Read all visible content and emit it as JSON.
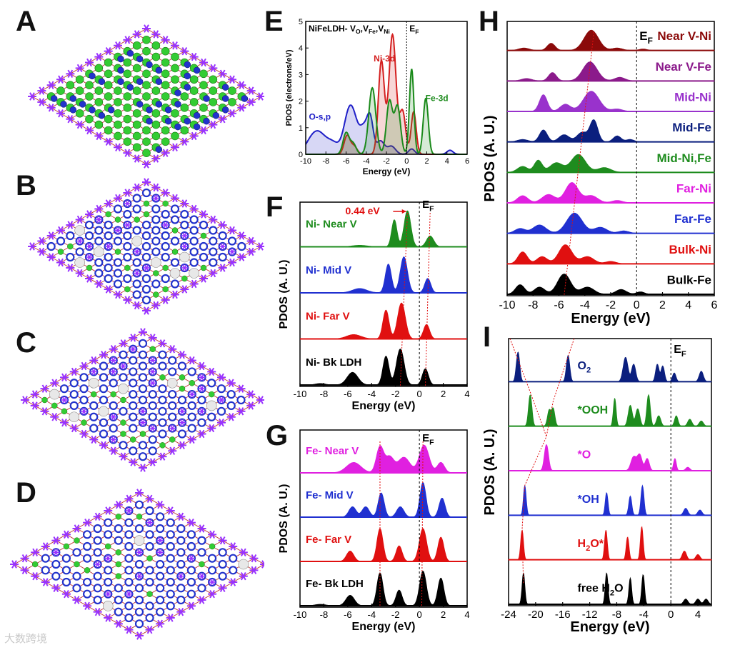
{
  "panel_labels": {
    "A": "A",
    "B": "B",
    "C": "C",
    "D": "D",
    "E": "E",
    "F": "F",
    "G": "G",
    "H": "H",
    "I": "I"
  },
  "watermark": "大数跨境",
  "colors": {
    "ni": "#1b8a1b",
    "fe": "#d42020",
    "o": "#2020c8",
    "black": "#000000",
    "navy": "#0b1f7e",
    "maroon": "#8b0a0a",
    "purple": "#8b1a8b",
    "violet": "#9932cc",
    "green": "#1e8c1e",
    "magenta": "#e020e0",
    "blue": "#2030d0",
    "red": "#e01010",
    "atomGreen": "#33cc33",
    "atomBlue": "#2233cc",
    "atomPurple": "#9933ff",
    "atomGray": "#e8e8e8"
  },
  "structures": [
    {
      "id": "A",
      "type": "NiFe LDH pristine"
    },
    {
      "id": "B",
      "type": "with vacancies"
    },
    {
      "id": "C",
      "type": "with vacancies"
    },
    {
      "id": "D",
      "type": "with vacancies"
    }
  ],
  "chart_data": [
    {
      "id": "E",
      "type": "area",
      "title": "NiFeLDH- VO,VFe,VNi",
      "title_parts": {
        "base": "NiFeLDH- V",
        "s1": "O",
        "mid1": ",V",
        "s2": "Fe",
        "mid2": ",V",
        "s3": "Ni"
      },
      "ef_label": "E",
      "ef_sub": "F",
      "xlabel": "Energy (eV)",
      "ylabel": "PDOS (electrons/eV)",
      "xlim": [
        -10,
        6
      ],
      "ylim": [
        0,
        5
      ],
      "xticks": [
        -10,
        -8,
        -6,
        -4,
        -2,
        0,
        2,
        4,
        6
      ],
      "yticks": [
        0,
        1,
        2,
        3,
        4,
        5
      ],
      "series": [
        {
          "name": "O-s,p",
          "color": "#2020c8",
          "peaks": [
            [
              -9.6,
              0.3,
              0.6
            ],
            [
              -8.7,
              0.75,
              0.7
            ],
            [
              -7.3,
              0.4,
              0.6
            ],
            [
              -5.8,
              1.2,
              0.5
            ],
            [
              -5.2,
              1.0,
              0.5
            ],
            [
              -4.2,
              0.9,
              0.4
            ],
            [
              -3.6,
              1.2,
              0.3
            ],
            [
              -2.6,
              0.5,
              0.4
            ],
            [
              -1.5,
              0.3,
              0.4
            ],
            [
              0.5,
              0.2,
              0.3
            ],
            [
              4.3,
              0.15,
              0.3
            ]
          ]
        },
        {
          "name": "Ni-3d",
          "color": "#d42020",
          "peaks": [
            [
              -5.9,
              0.7,
              0.3
            ],
            [
              -5.2,
              0.3,
              0.3
            ],
            [
              -2.5,
              3.5,
              0.3
            ],
            [
              -1.4,
              4.5,
              0.35
            ],
            [
              -0.4,
              1.6,
              0.3
            ],
            [
              0.7,
              1.6,
              0.25
            ]
          ]
        },
        {
          "name": "Fe-3d",
          "color": "#1b8a1b",
          "peaks": [
            [
              -6.0,
              0.8,
              0.3
            ],
            [
              -5.3,
              0.4,
              0.3
            ],
            [
              -3.4,
              2.5,
              0.35
            ],
            [
              -1.7,
              2.0,
              0.3
            ],
            [
              -0.9,
              1.8,
              0.3
            ],
            [
              0.5,
              3.2,
              0.22
            ],
            [
              1.9,
              2.1,
              0.25
            ]
          ]
        }
      ]
    },
    {
      "id": "F",
      "type": "area",
      "annotation": "0.44 eV",
      "ef_label": "E",
      "ef_sub": "F",
      "xlabel": "Energy (eV)",
      "ylabel": "PDOS (A. U.)",
      "xlim": [
        -10,
        4
      ],
      "xticks": [
        -10,
        -8,
        -6,
        -4,
        -2,
        0,
        2,
        4
      ],
      "series": [
        {
          "name": "Ni- Near V",
          "color": "#1e8c1e",
          "peaks": [
            [
              -2.1,
              0.75,
              0.22
            ],
            [
              -1.0,
              1.0,
              0.28
            ],
            [
              0.9,
              0.3,
              0.3
            ],
            [
              -5.0,
              0.04,
              0.6
            ]
          ]
        },
        {
          "name": "Ni- Mid V",
          "color": "#2030d0",
          "peaks": [
            [
              -2.6,
              0.8,
              0.25
            ],
            [
              -1.3,
              1.0,
              0.3
            ],
            [
              0.7,
              0.4,
              0.25
            ],
            [
              -5.0,
              0.12,
              0.6
            ]
          ]
        },
        {
          "name": "Ni- Far V",
          "color": "#e01010",
          "peaks": [
            [
              -2.8,
              0.8,
              0.25
            ],
            [
              -1.5,
              1.0,
              0.32
            ],
            [
              0.6,
              0.4,
              0.25
            ],
            [
              -5.5,
              0.12,
              0.6
            ]
          ]
        },
        {
          "name": "Ni- Bk LDH",
          "color": "#000000",
          "peaks": [
            [
              -2.8,
              0.8,
              0.25
            ],
            [
              -1.6,
              1.0,
              0.32
            ],
            [
              0.5,
              0.45,
              0.25
            ],
            [
              -5.6,
              0.35,
              0.45
            ],
            [
              -8.3,
              0.04,
              0.4
            ]
          ]
        }
      ]
    },
    {
      "id": "G",
      "type": "area",
      "ef_label": "E",
      "ef_sub": "F",
      "xlabel": "Energy (eV)",
      "ylabel": "PDOS (A. U.)",
      "xlim": [
        -10,
        4
      ],
      "xticks": [
        -10,
        -8,
        -6,
        -4,
        -2,
        0,
        2,
        4
      ],
      "series": [
        {
          "name": "Fe- Near V",
          "color": "#e020e0",
          "peaks": [
            [
              -5.5,
              0.3,
              0.6
            ],
            [
              -3.3,
              0.75,
              0.3
            ],
            [
              -2.5,
              0.45,
              0.35
            ],
            [
              -1.3,
              0.45,
              0.5
            ],
            [
              0.4,
              0.8,
              0.4
            ],
            [
              1.8,
              0.3,
              0.3
            ]
          ]
        },
        {
          "name": "Fe- Mid V",
          "color": "#2030d0",
          "peaks": [
            [
              -5.6,
              0.3,
              0.3
            ],
            [
              -4.5,
              0.3,
              0.3
            ],
            [
              -3.2,
              0.7,
              0.25
            ],
            [
              -1.6,
              0.3,
              0.3
            ],
            [
              0.3,
              1.0,
              0.25
            ],
            [
              1.9,
              0.55,
              0.25
            ]
          ]
        },
        {
          "name": "Fe- Far V",
          "color": "#e01010",
          "peaks": [
            [
              -5.8,
              0.3,
              0.3
            ],
            [
              -3.3,
              0.95,
              0.25
            ],
            [
              -1.7,
              0.45,
              0.25
            ],
            [
              0.3,
              0.95,
              0.3
            ],
            [
              1.8,
              0.7,
              0.25
            ]
          ]
        },
        {
          "name": "Fe- Bk LDH",
          "color": "#000000",
          "peaks": [
            [
              -5.8,
              0.3,
              0.35
            ],
            [
              -3.3,
              0.95,
              0.25
            ],
            [
              -1.7,
              0.45,
              0.25
            ],
            [
              0.3,
              1.0,
              0.28
            ],
            [
              1.8,
              0.8,
              0.25
            ],
            [
              -8.3,
              0.04,
              0.4
            ]
          ]
        }
      ]
    },
    {
      "id": "H",
      "type": "area",
      "ef_label": "E",
      "ef_sub": "F",
      "xlabel": "Energy (eV)",
      "ylabel": "PDOS (A. U.)",
      "xlim": [
        -10,
        6
      ],
      "xticks": [
        -10,
        -8,
        -6,
        -4,
        -2,
        0,
        2,
        4,
        6
      ],
      "series": [
        {
          "name": "Near V-Ni",
          "color": "#8b0a0a",
          "peaks": [
            [
              -8.7,
              0.1,
              0.4
            ],
            [
              -6.6,
              0.3,
              0.3
            ],
            [
              -3.5,
              0.85,
              0.55
            ],
            [
              -1.5,
              0.1,
              0.4
            ],
            [
              0.5,
              0.06,
              0.3
            ]
          ]
        },
        {
          "name": "Near V-Fe",
          "color": "#8b1a8b",
          "peaks": [
            [
              -8.5,
              0.1,
              0.4
            ],
            [
              -6.5,
              0.35,
              0.3
            ],
            [
              -3.6,
              0.8,
              0.55
            ],
            [
              -1.3,
              0.15,
              0.4
            ]
          ]
        },
        {
          "name": "Mid-Ni",
          "color": "#9932cc",
          "peaks": [
            [
              -7.2,
              0.7,
              0.3
            ],
            [
              -5.5,
              0.3,
              0.4
            ],
            [
              -3.5,
              0.85,
              0.6
            ],
            [
              -1.5,
              0.1,
              0.4
            ]
          ]
        },
        {
          "name": "Mid-Fe",
          "color": "#0b1f7e",
          "peaks": [
            [
              -8.8,
              0.1,
              0.4
            ],
            [
              -7.2,
              0.5,
              0.3
            ],
            [
              -5.6,
              0.3,
              0.4
            ],
            [
              -4.2,
              0.4,
              0.4
            ],
            [
              -3.3,
              0.9,
              0.3
            ],
            [
              -1.5,
              0.25,
              0.3
            ],
            [
              -0.5,
              0.1,
              0.3
            ]
          ]
        },
        {
          "name": "Mid-Ni,Fe",
          "color": "#1e8c1e",
          "peaks": [
            [
              -8.8,
              0.25,
              0.4
            ],
            [
              -7.6,
              0.5,
              0.3
            ],
            [
              -6.2,
              0.4,
              0.5
            ],
            [
              -4.5,
              0.75,
              0.55
            ],
            [
              -2.5,
              0.2,
              0.5
            ]
          ]
        },
        {
          "name": "Far-Ni",
          "color": "#e020e0",
          "peaks": [
            [
              -8.8,
              0.3,
              0.4
            ],
            [
              -6.8,
              0.35,
              0.5
            ],
            [
              -5.0,
              0.85,
              0.5
            ],
            [
              -3.5,
              0.3,
              0.5
            ],
            [
              -1.5,
              0.1,
              0.4
            ]
          ]
        },
        {
          "name": "Far-Fe",
          "color": "#2030d0",
          "peaks": [
            [
              -9.0,
              0.2,
              0.4
            ],
            [
              -7.5,
              0.35,
              0.5
            ],
            [
              -4.8,
              0.85,
              0.6
            ],
            [
              -2.8,
              0.25,
              0.5
            ],
            [
              -1.0,
              0.1,
              0.4
            ]
          ]
        },
        {
          "name": "Bulk-Ni",
          "color": "#e01010",
          "peaks": [
            [
              -8.8,
              0.5,
              0.35
            ],
            [
              -7.3,
              0.3,
              0.4
            ],
            [
              -5.5,
              0.8,
              0.5
            ],
            [
              -3.8,
              0.3,
              0.5
            ],
            [
              -2.0,
              0.1,
              0.4
            ]
          ]
        },
        {
          "name": "Bulk-Fe",
          "color": "#000000",
          "peaks": [
            [
              -9.0,
              0.4,
              0.35
            ],
            [
              -7.5,
              0.3,
              0.4
            ],
            [
              -5.6,
              0.85,
              0.5
            ],
            [
              -3.8,
              0.3,
              0.5
            ],
            [
              -1.2,
              0.2,
              0.4
            ],
            [
              0.3,
              0.1,
              0.3
            ]
          ]
        }
      ]
    },
    {
      "id": "I",
      "type": "area",
      "ef_label": "E",
      "ef_sub": "F",
      "xlabel": "Energy (eV)",
      "ylabel": "PDOS (A. U.)",
      "xlim": [
        -24,
        6
      ],
      "xticks": [
        -24,
        -20,
        -16,
        -12,
        -8,
        -4,
        0,
        4
      ],
      "series": [
        {
          "name": "O2",
          "label_base": "O",
          "label_sub": "2",
          "color": "#0b1f7e",
          "peaks": [
            [
              -22.6,
              0.85,
              0.25
            ],
            [
              -15.2,
              0.75,
              0.25
            ],
            [
              -6.7,
              0.7,
              0.35
            ],
            [
              -5.5,
              0.5,
              0.3
            ],
            [
              -2.0,
              0.5,
              0.25
            ],
            [
              -1.2,
              0.45,
              0.25
            ],
            [
              0.5,
              0.25,
              0.25
            ],
            [
              4.5,
              0.3,
              0.3
            ]
          ]
        },
        {
          "name": "*OOH",
          "label_base": "*OOH",
          "label_sub": "",
          "color": "#1e8c1e",
          "peaks": [
            [
              -20.8,
              0.9,
              0.25
            ],
            [
              -18.0,
              0.45,
              0.25
            ],
            [
              -17.4,
              0.5,
              0.25
            ],
            [
              -8.3,
              0.8,
              0.2
            ],
            [
              -6.0,
              0.6,
              0.3
            ],
            [
              -4.9,
              0.5,
              0.3
            ],
            [
              -3.3,
              0.9,
              0.25
            ],
            [
              -1.8,
              0.3,
              0.3
            ],
            [
              0.8,
              0.3,
              0.25
            ],
            [
              2.8,
              0.2,
              0.3
            ],
            [
              4.5,
              0.15,
              0.3
            ]
          ]
        },
        {
          "name": "*O",
          "label_base": "*O",
          "label_sub": "",
          "color": "#e020e0",
          "peaks": [
            [
              -18.4,
              0.75,
              0.3
            ],
            [
              -5.5,
              0.4,
              0.4
            ],
            [
              -4.6,
              0.45,
              0.35
            ],
            [
              -3.5,
              0.35,
              0.3
            ],
            [
              0.6,
              0.35,
              0.2
            ],
            [
              2.5,
              0.1,
              0.3
            ]
          ]
        },
        {
          "name": "*OH",
          "label_base": "*OH",
          "label_sub": "",
          "color": "#2030d0",
          "peaks": [
            [
              -21.6,
              0.85,
              0.2
            ],
            [
              -9.5,
              0.65,
              0.2
            ],
            [
              -6.0,
              0.55,
              0.22
            ],
            [
              -4.2,
              0.85,
              0.22
            ],
            [
              2.2,
              0.2,
              0.3
            ],
            [
              4.3,
              0.15,
              0.3
            ]
          ]
        },
        {
          "name": "H2O*",
          "label_base": "H",
          "label_sub": "2",
          "label_tail": "O*",
          "color": "#e01010",
          "peaks": [
            [
              -22.0,
              0.85,
              0.2
            ],
            [
              -9.6,
              0.85,
              0.2
            ],
            [
              -6.4,
              0.65,
              0.2
            ],
            [
              -4.3,
              0.95,
              0.2
            ],
            [
              2.0,
              0.25,
              0.3
            ],
            [
              4.0,
              0.15,
              0.3
            ]
          ]
        },
        {
          "name": "free H2O",
          "label_base": "free H",
          "label_sub": "2",
          "label_tail": "O",
          "color": "#000000",
          "peaks": [
            [
              -21.8,
              0.9,
              0.2
            ],
            [
              -9.5,
              0.9,
              0.2
            ],
            [
              -6.0,
              0.75,
              0.2
            ],
            [
              -4.1,
              0.85,
              0.2
            ],
            [
              2.2,
              0.15,
              0.3
            ],
            [
              4.0,
              0.15,
              0.3
            ],
            [
              5.2,
              0.15,
              0.3
            ]
          ]
        }
      ]
    }
  ]
}
